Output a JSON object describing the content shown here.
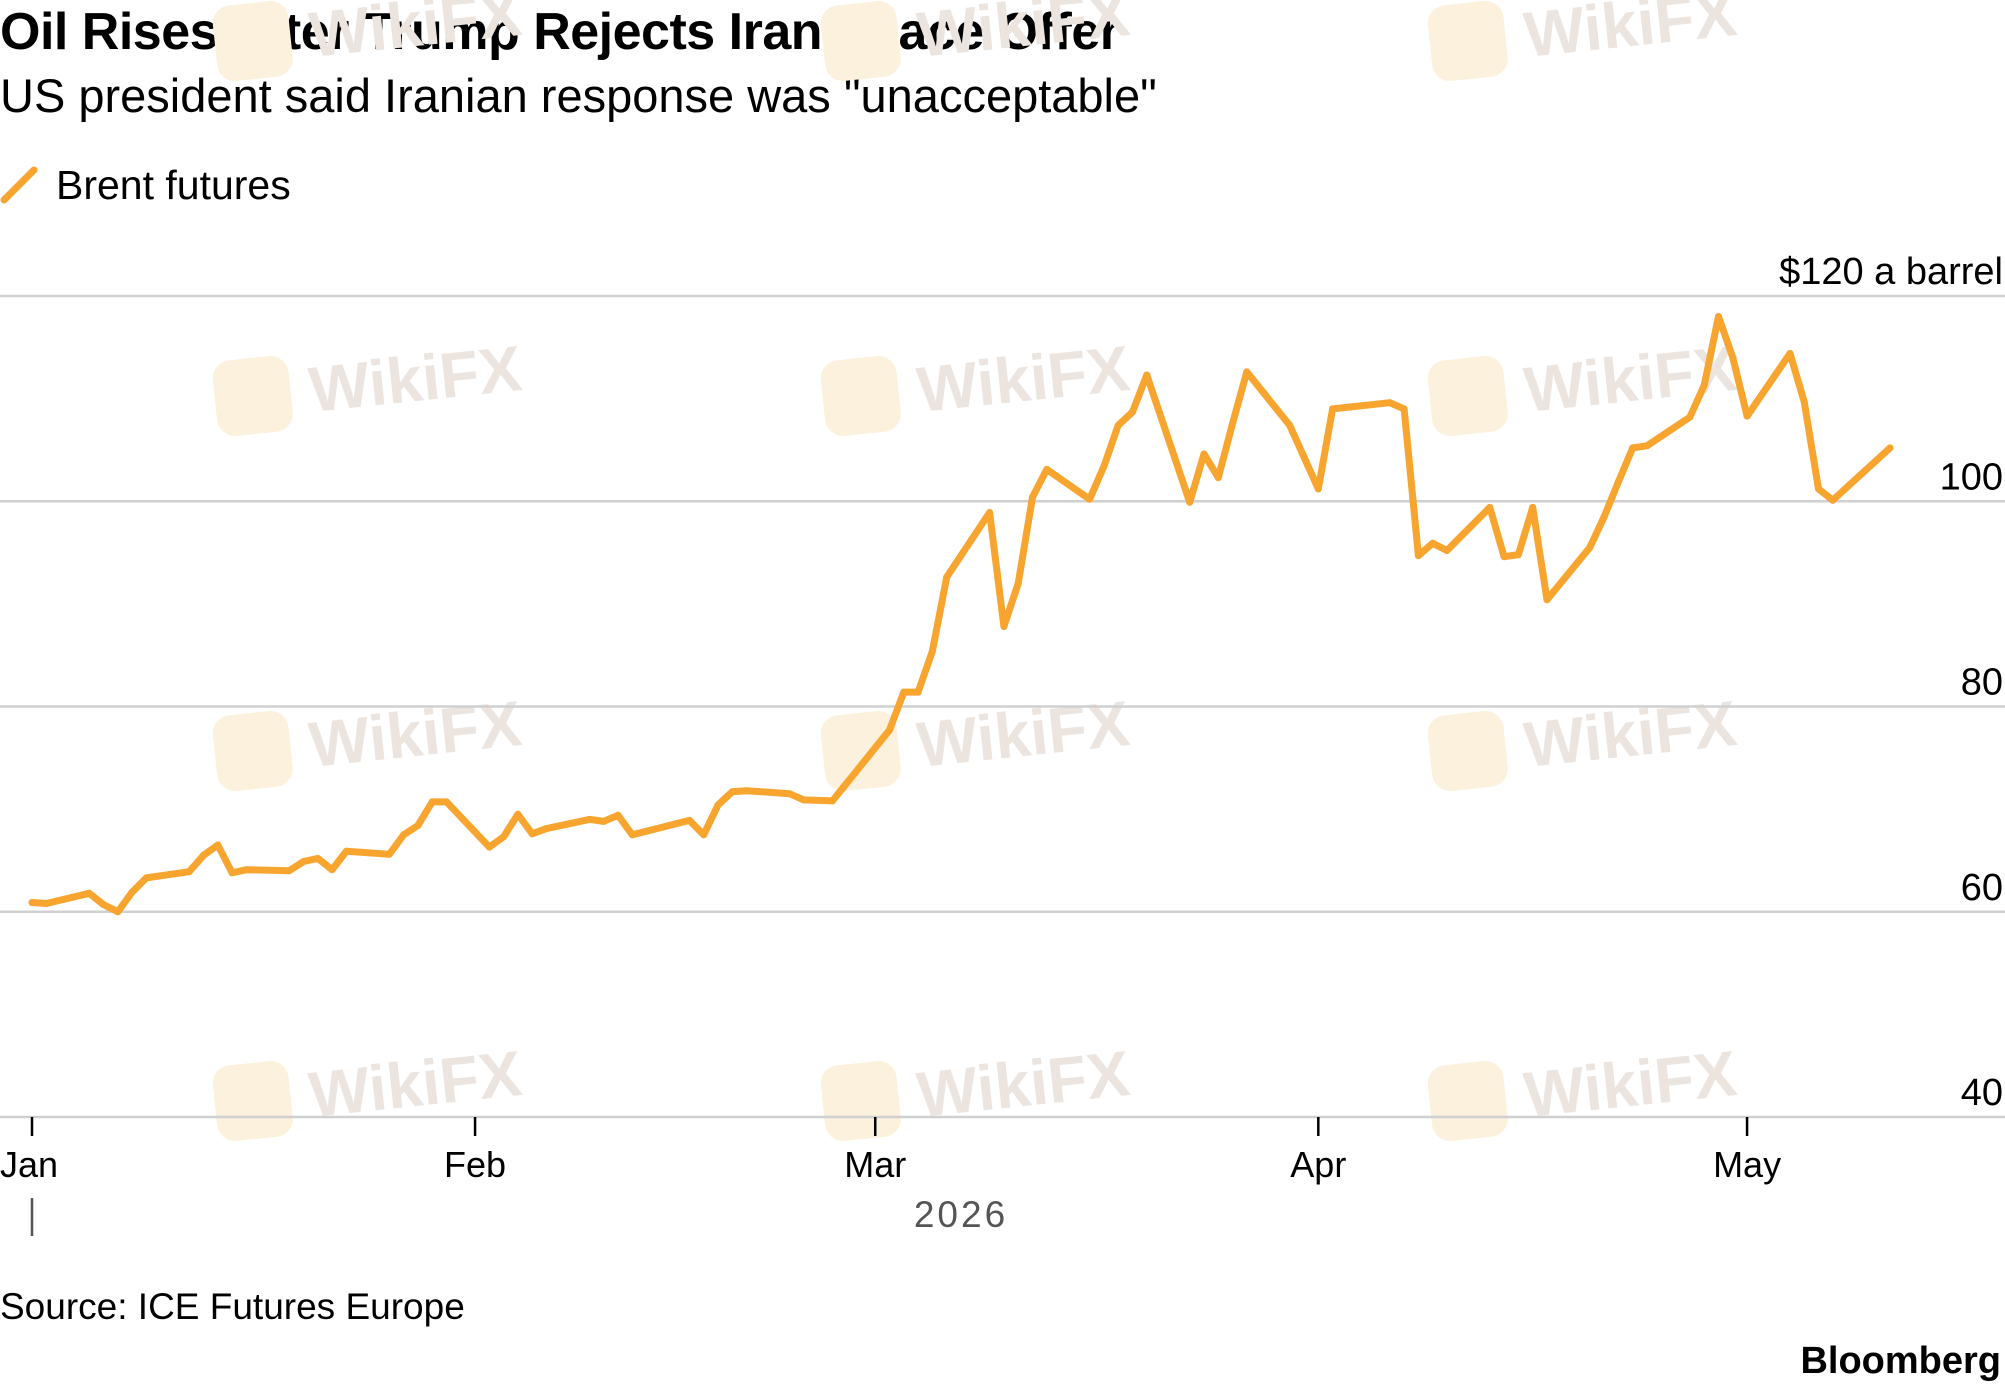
{
  "colors": {
    "series": "#f7a52f",
    "grid": "#d0d0d0",
    "watermark_text": "#ebe4df",
    "watermark_logo": "#fbf1dc"
  },
  "watermark": {
    "text": "WikiFX"
  },
  "source": "Source: ICE Futures Europe",
  "brand": "Bloomberg",
  "chart_data": {
    "type": "line",
    "title": "Oil Rises After Trump Rejects Iran Peace Offer",
    "subtitle": "US president said Iranian response was \"unacceptable\"",
    "xlabel": "2026",
    "ylabel": "",
    "y_unit_label": "$120 a barrel",
    "ylim": [
      40,
      120
    ],
    "yticks": [
      {
        "value": 120,
        "label": "$120 a barrel"
      },
      {
        "value": 100,
        "label": "100"
      },
      {
        "value": 80,
        "label": "80"
      },
      {
        "value": 60,
        "label": "60"
      },
      {
        "value": 40,
        "label": "40"
      }
    ],
    "xticks": [
      {
        "date": "2026-01-01",
        "label": "Jan"
      },
      {
        "date": "2026-02-01",
        "label": "Feb"
      },
      {
        "date": "2026-03-01",
        "label": "Mar"
      },
      {
        "date": "2026-04-01",
        "label": "Apr"
      },
      {
        "date": "2026-05-01",
        "label": "May"
      }
    ],
    "grid": true,
    "legend": "top-left",
    "series": [
      {
        "name": "Brent futures",
        "color": "#f7a52f",
        "points": [
          [
            "2026-01-01",
            60.9
          ],
          [
            "2026-01-02",
            60.8
          ],
          [
            "2026-01-05",
            61.8
          ],
          [
            "2026-01-06",
            60.7
          ],
          [
            "2026-01-07",
            60.0
          ],
          [
            "2026-01-08",
            61.9
          ],
          [
            "2026-01-09",
            63.3
          ],
          [
            "2026-01-12",
            63.9
          ],
          [
            "2026-01-13",
            65.5
          ],
          [
            "2026-01-14",
            66.5
          ],
          [
            "2026-01-15",
            63.8
          ],
          [
            "2026-01-16",
            64.1
          ],
          [
            "2026-01-19",
            64.0
          ],
          [
            "2026-01-20",
            64.9
          ],
          [
            "2026-01-21",
            65.2
          ],
          [
            "2026-01-22",
            64.1
          ],
          [
            "2026-01-23",
            65.9
          ],
          [
            "2026-01-26",
            65.6
          ],
          [
            "2026-01-27",
            67.5
          ],
          [
            "2026-01-28",
            68.4
          ],
          [
            "2026-01-29",
            70.7
          ],
          [
            "2026-01-30",
            70.7
          ],
          [
            "2026-02-02",
            66.3
          ],
          [
            "2026-02-03",
            67.3
          ],
          [
            "2026-02-04",
            69.5
          ],
          [
            "2026-02-05",
            67.6
          ],
          [
            "2026-02-06",
            68.1
          ],
          [
            "2026-02-09",
            69.0
          ],
          [
            "2026-02-10",
            68.8
          ],
          [
            "2026-02-11",
            69.4
          ],
          [
            "2026-02-12",
            67.5
          ],
          [
            "2026-02-16",
            68.9
          ],
          [
            "2026-02-17",
            67.5
          ],
          [
            "2026-02-18",
            70.4
          ],
          [
            "2026-02-19",
            71.7
          ],
          [
            "2026-02-20",
            71.8
          ],
          [
            "2026-02-23",
            71.5
          ],
          [
            "2026-02-24",
            70.9
          ],
          [
            "2026-02-26",
            70.8
          ],
          [
            "2026-03-02",
            77.7
          ],
          [
            "2026-03-03",
            81.4
          ],
          [
            "2026-03-04",
            81.4
          ],
          [
            "2026-03-05",
            85.4
          ],
          [
            "2026-03-06",
            92.6
          ],
          [
            "2026-03-09",
            98.9
          ],
          [
            "2026-03-10",
            87.8
          ],
          [
            "2026-03-11",
            92.0
          ],
          [
            "2026-03-12",
            100.4
          ],
          [
            "2026-03-13",
            103.1
          ],
          [
            "2026-03-16",
            100.2
          ],
          [
            "2026-03-17",
            103.4
          ],
          [
            "2026-03-18",
            107.4
          ],
          [
            "2026-03-19",
            108.7
          ],
          [
            "2026-03-20",
            112.3
          ],
          [
            "2026-03-23",
            99.9
          ],
          [
            "2026-03-24",
            104.6
          ],
          [
            "2026-03-25",
            102.3
          ],
          [
            "2026-03-26",
            107.6
          ],
          [
            "2026-03-27",
            112.6
          ],
          [
            "2026-03-30",
            107.4
          ],
          [
            "2026-03-31",
            104.3
          ],
          [
            "2026-04-01",
            101.2
          ],
          [
            "2026-04-02",
            109.0
          ],
          [
            "2026-04-06",
            109.6
          ],
          [
            "2026-04-07",
            109.0
          ],
          [
            "2026-04-08",
            94.7
          ],
          [
            "2026-04-09",
            95.9
          ],
          [
            "2026-04-10",
            95.2
          ],
          [
            "2026-04-13",
            99.4
          ],
          [
            "2026-04-14",
            94.6
          ],
          [
            "2026-04-15",
            94.8
          ],
          [
            "2026-04-16",
            99.4
          ],
          [
            "2026-04-17",
            90.4
          ],
          [
            "2026-04-20",
            95.5
          ],
          [
            "2026-04-21",
            98.5
          ],
          [
            "2026-04-22",
            101.9
          ],
          [
            "2026-04-23",
            105.2
          ],
          [
            "2026-04-24",
            105.4
          ],
          [
            "2026-04-27",
            108.2
          ],
          [
            "2026-04-28",
            111.3
          ],
          [
            "2026-04-29",
            118.0
          ],
          [
            "2026-04-30",
            114.0
          ],
          [
            "2026-05-01",
            108.3
          ],
          [
            "2026-05-04",
            114.4
          ],
          [
            "2026-05-05",
            109.7
          ],
          [
            "2026-05-06",
            101.2
          ],
          [
            "2026-05-07",
            100.1
          ],
          [
            "2026-05-11",
            105.2
          ]
        ]
      }
    ]
  }
}
